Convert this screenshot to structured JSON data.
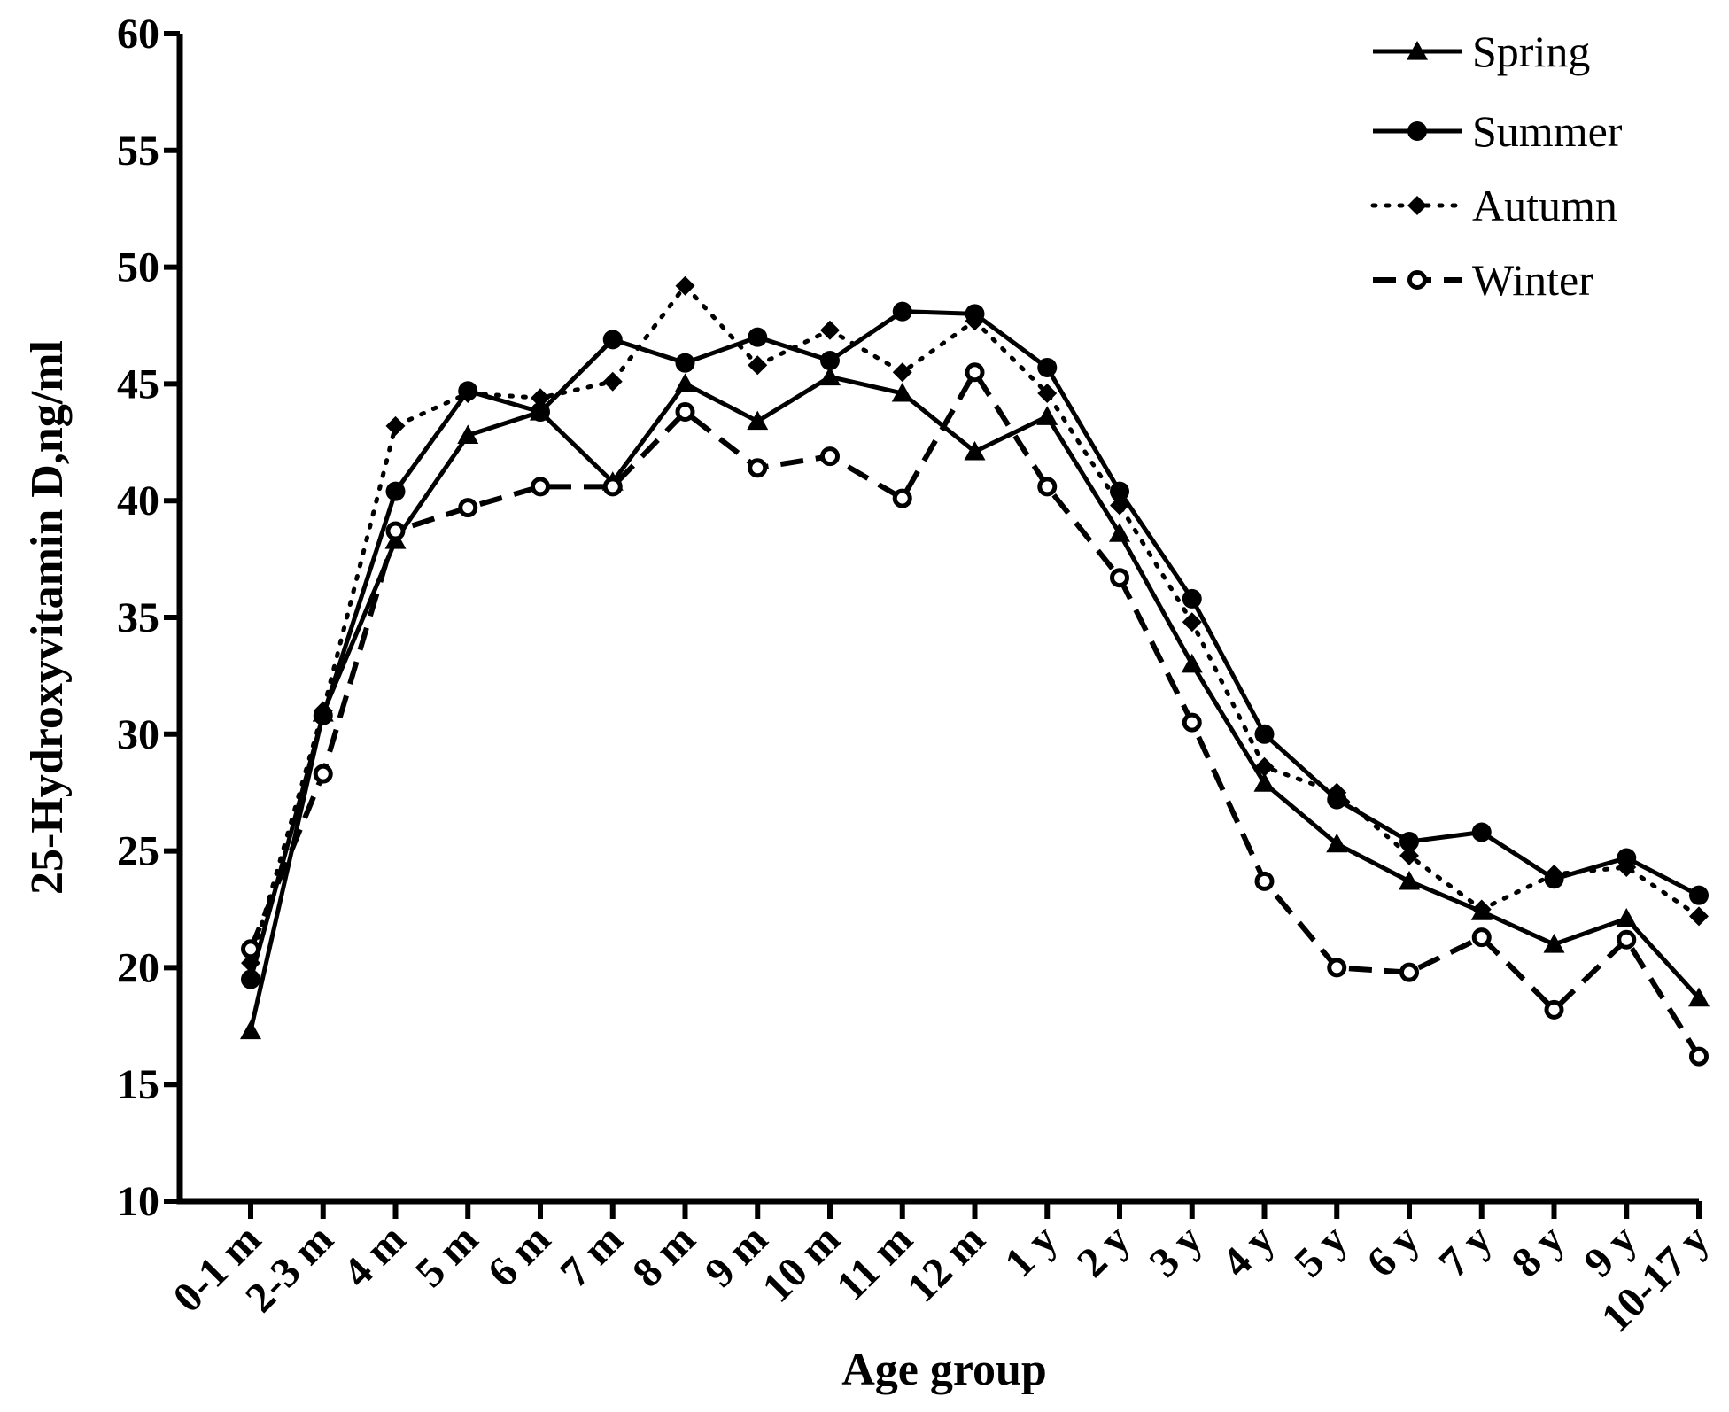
{
  "chart_data": {
    "type": "line",
    "xlabel": "Age group",
    "ylabel": "25-Hydroxyvitamin D,ng/ml",
    "ylim": [
      10,
      60
    ],
    "yticks": [
      10,
      15,
      20,
      25,
      30,
      35,
      40,
      45,
      50,
      55,
      60
    ],
    "grid": false,
    "legend_position": "top-right",
    "categories": [
      "0-1 m",
      "2-3 m",
      "4 m",
      "5 m",
      "6 m",
      "7 m",
      "8 m",
      "9 m",
      "10 m",
      "11 m",
      "12 m",
      "1 y",
      "2 y",
      "3 y",
      "4 y",
      "5 y",
      "6 y",
      "7 y",
      "8 y",
      "9 y",
      "10-17 y"
    ],
    "series": [
      {
        "name": "Spring",
        "marker": "triangle",
        "line": "solid",
        "color": "#000000",
        "values": [
          17.3,
          30.9,
          38.3,
          42.8,
          43.8,
          40.8,
          45.0,
          43.4,
          45.3,
          44.6,
          42.1,
          43.6,
          38.6,
          33.0,
          27.9,
          25.3,
          23.7,
          22.4,
          21.0,
          22.1,
          18.7
        ]
      },
      {
        "name": "Summer",
        "marker": "circle",
        "line": "solid",
        "color": "#000000",
        "values": [
          19.5,
          30.8,
          40.4,
          44.7,
          43.8,
          46.9,
          45.9,
          47.0,
          46.0,
          48.1,
          48.0,
          45.7,
          40.4,
          35.8,
          30.0,
          27.2,
          25.4,
          25.8,
          23.8,
          24.7,
          23.1
        ]
      },
      {
        "name": "Autumn",
        "marker": "diamond",
        "line": "dotted",
        "color": "#000000",
        "values": [
          20.2,
          31.0,
          43.2,
          44.6,
          44.4,
          45.1,
          49.2,
          45.8,
          47.3,
          45.5,
          47.7,
          44.6,
          39.8,
          34.8,
          28.6,
          27.5,
          24.8,
          22.5,
          24.0,
          24.3,
          22.2
        ]
      },
      {
        "name": "Winter",
        "marker": "open-circle",
        "line": "dashed",
        "color": "#000000",
        "values": [
          20.8,
          28.3,
          38.7,
          39.7,
          40.6,
          40.6,
          43.8,
          41.4,
          41.9,
          40.1,
          45.5,
          40.6,
          36.7,
          30.5,
          23.7,
          20.0,
          19.8,
          21.3,
          18.2,
          21.2,
          16.2
        ]
      }
    ]
  }
}
